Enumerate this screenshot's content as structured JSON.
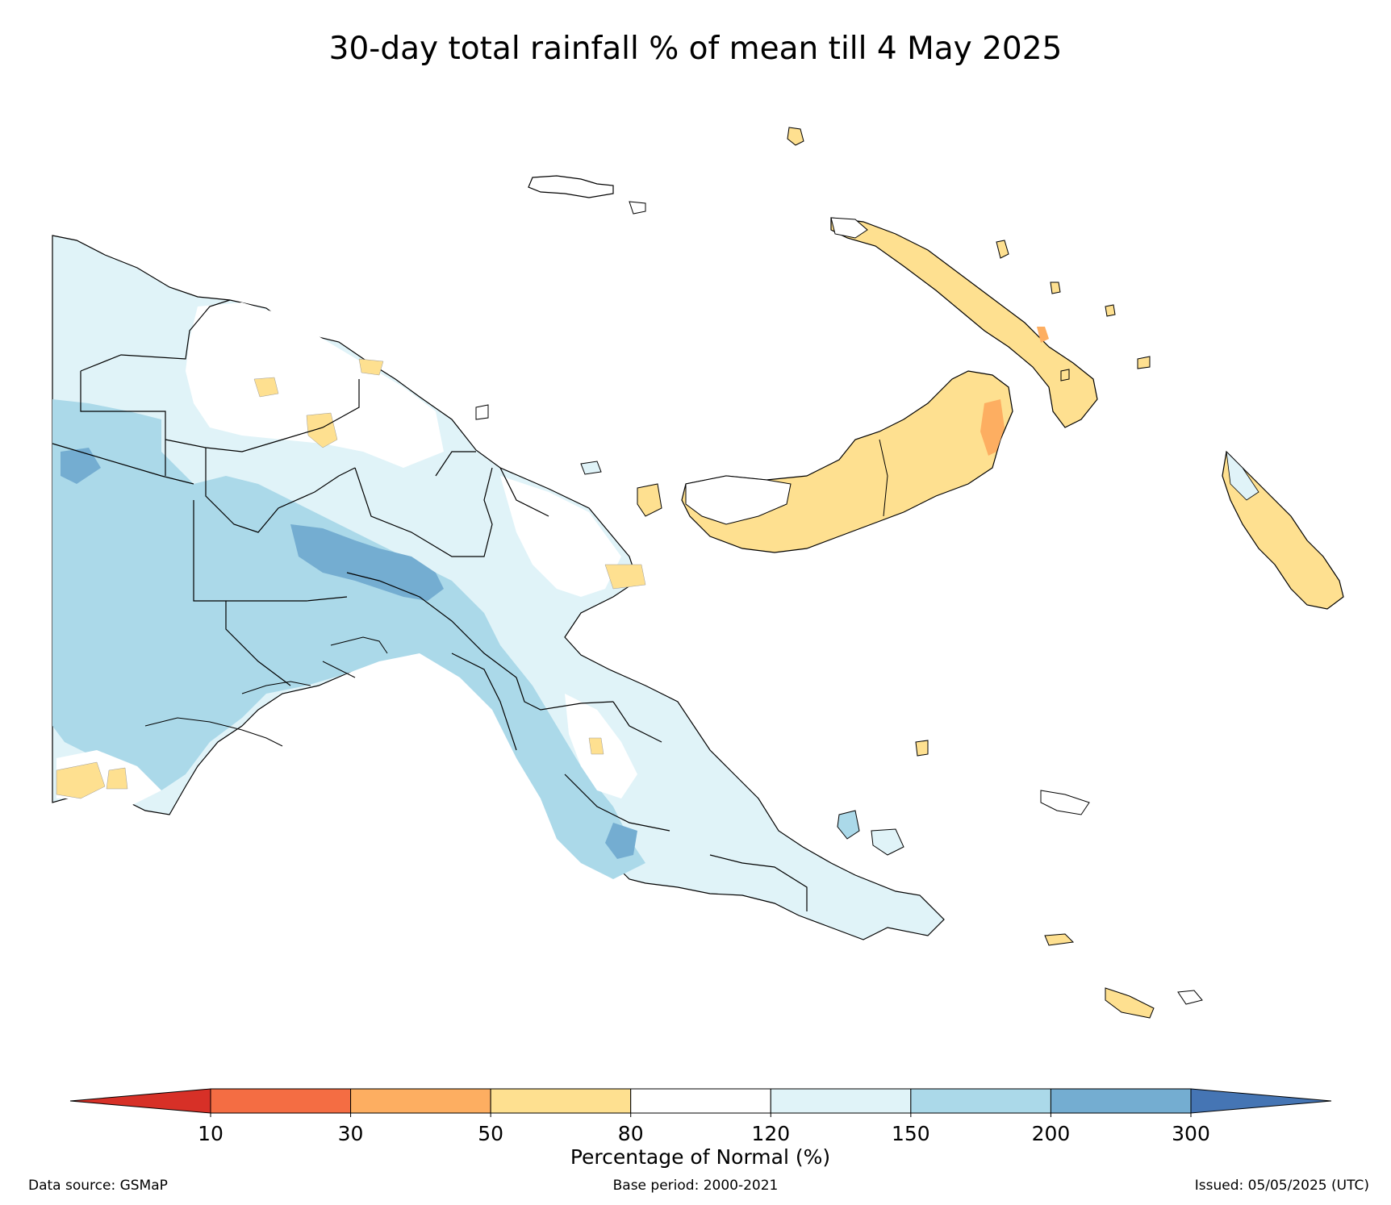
{
  "title": "30-day total rainfall % of mean till 4 May 2025",
  "colorbar": {
    "label": "Percentage of Normal (%)",
    "ticks": [
      "10",
      "30",
      "50",
      "80",
      "120",
      "150",
      "200",
      "300"
    ],
    "bins": [
      {
        "range": "<10",
        "color": "#d73027"
      },
      {
        "range": "10-30",
        "color": "#f46d43"
      },
      {
        "range": "30-50",
        "color": "#fdae61"
      },
      {
        "range": "50-80",
        "color": "#fee090"
      },
      {
        "range": "80-120",
        "color": "#ffffff"
      },
      {
        "range": "120-150",
        "color": "#e0f3f8"
      },
      {
        "range": "150-200",
        "color": "#abd9e9"
      },
      {
        "range": "200-300",
        "color": "#74add1"
      },
      {
        "range": ">300",
        "color": "#4575b4"
      }
    ]
  },
  "footer": {
    "data_source": "Data source: GSMaP",
    "base_period": "Base period: 2000-2021",
    "issued": "Issued: 05/05/2025 (UTC)"
  }
}
